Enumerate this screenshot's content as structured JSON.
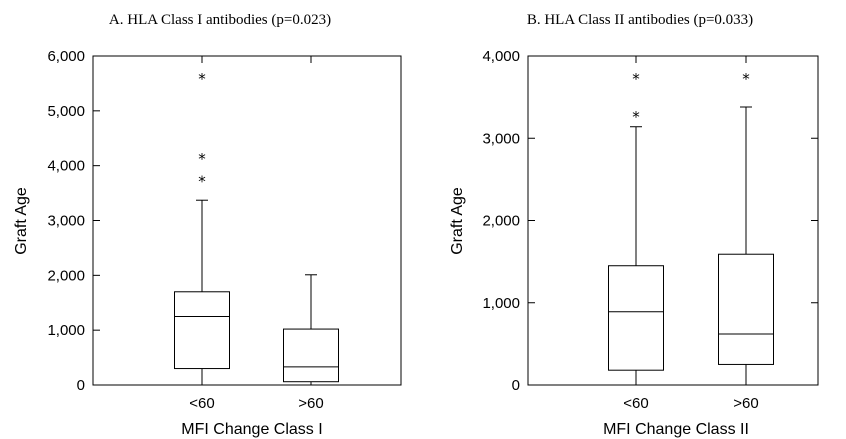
{
  "chart_data": [
    {
      "type": "box",
      "title": "A. HLA Class I antibodies (p=0.023)",
      "xlabel": "MFI Change Class I",
      "ylabel": "Graft Age",
      "ylim": [
        0,
        6000
      ],
      "yticks": [
        0,
        1000,
        2000,
        3000,
        4000,
        5000,
        6000
      ],
      "ytick_labels": [
        "0",
        "1,000",
        "2,000",
        "3,000",
        "4,000",
        "5,000",
        "6,000"
      ],
      "categories": [
        "<60",
        ">60"
      ],
      "boxes": [
        {
          "category": "<60",
          "whisker_low": 0,
          "q1": 300,
          "median": 1250,
          "q3": 1700,
          "whisker_high": 3370,
          "outliers": [
            3780,
            4190,
            5650
          ]
        },
        {
          "category": ">60",
          "whisker_low": 0,
          "q1": 60,
          "median": 330,
          "q3": 1020,
          "whisker_high": 2010,
          "outliers": []
        }
      ]
    },
    {
      "type": "box",
      "title": "B. HLA Class II antibodies (p=0.033)",
      "xlabel": "MFI Change Class II",
      "ylabel": "Graft Age",
      "ylim": [
        0,
        4000
      ],
      "yticks": [
        0,
        1000,
        2000,
        3000,
        4000
      ],
      "ytick_labels": [
        "0",
        "1,000",
        "2,000",
        "3,000",
        "4,000"
      ],
      "categories": [
        "<60",
        ">60"
      ],
      "boxes": [
        {
          "category": "<60",
          "whisker_low": 0,
          "q1": 180,
          "median": 890,
          "q3": 1450,
          "whisker_high": 3140,
          "outliers": [
            3310,
            3770
          ]
        },
        {
          "category": ">60",
          "whisker_low": 0,
          "q1": 250,
          "median": 620,
          "q3": 1590,
          "whisker_high": 3380,
          "outliers": [
            3770
          ]
        }
      ]
    }
  ]
}
